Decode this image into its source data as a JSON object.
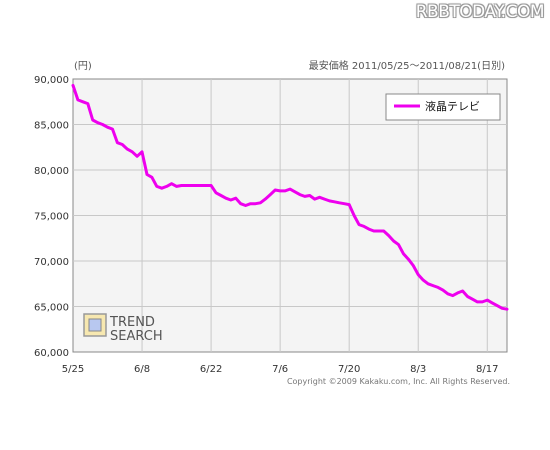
{
  "site": {
    "logo_text": "RBBTODAY.COM"
  },
  "header": {
    "unit": "(円)",
    "range_label": "最安価格  2011/05/25～2011/08/21(日別)"
  },
  "watermark": {
    "line1": "TREND",
    "line2": "SEARCH"
  },
  "footer": {
    "copyright": "Copyright ©2009 Kakaku.com, Inc. All Rights Reserved."
  },
  "colors": {
    "series": "#ee00ee",
    "plot_bg": "#f4f4f4",
    "grid": "#c8c8c8"
  },
  "chart_data": {
    "type": "line",
    "title": "",
    "xlabel": "",
    "ylabel": "(円)",
    "ylim": [
      60000,
      90000
    ],
    "yticks": [
      60000,
      65000,
      70000,
      75000,
      80000,
      85000,
      90000
    ],
    "ytick_labels": [
      "60,000",
      "65,000",
      "70,000",
      "75,000",
      "80,000",
      "85,000",
      "90,000"
    ],
    "xticks": [
      "5/25",
      "6/8",
      "6/22",
      "7/6",
      "7/20",
      "8/3",
      "8/17"
    ],
    "grid": true,
    "legend_position": "top-right",
    "series": [
      {
        "name": "液晶テレビ",
        "color": "#ee00ee",
        "x": [
          "5/25",
          "5/26",
          "5/27",
          "5/28",
          "5/29",
          "5/30",
          "5/31",
          "6/1",
          "6/2",
          "6/3",
          "6/4",
          "6/5",
          "6/6",
          "6/7",
          "6/8",
          "6/9",
          "6/10",
          "6/11",
          "6/12",
          "6/13",
          "6/14",
          "6/15",
          "6/16",
          "6/17",
          "6/18",
          "6/19",
          "6/20",
          "6/21",
          "6/22",
          "6/23",
          "6/24",
          "6/25",
          "6/26",
          "6/27",
          "6/28",
          "6/29",
          "6/30",
          "7/1",
          "7/2",
          "7/3",
          "7/4",
          "7/5",
          "7/6",
          "7/7",
          "7/8",
          "7/9",
          "7/10",
          "7/11",
          "7/12",
          "7/13",
          "7/14",
          "7/15",
          "7/16",
          "7/17",
          "7/18",
          "7/19",
          "7/20",
          "7/21",
          "7/22",
          "7/23",
          "7/24",
          "7/25",
          "7/26",
          "7/27",
          "7/28",
          "7/29",
          "7/30",
          "7/31",
          "8/1",
          "8/2",
          "8/3",
          "8/4",
          "8/5",
          "8/6",
          "8/7",
          "8/8",
          "8/9",
          "8/10",
          "8/11",
          "8/12",
          "8/13",
          "8/14",
          "8/15",
          "8/16",
          "8/17",
          "8/18",
          "8/19",
          "8/20",
          "8/21"
        ],
        "values": [
          89300,
          87700,
          87500,
          87300,
          85500,
          85200,
          85000,
          84700,
          84500,
          83000,
          82800,
          82300,
          82000,
          81500,
          82000,
          79500,
          79200,
          78200,
          78000,
          78200,
          78500,
          78200,
          78300,
          78300,
          78300,
          78300,
          78300,
          78300,
          78300,
          77500,
          77200,
          76900,
          76700,
          76900,
          76300,
          76100,
          76300,
          76300,
          76400,
          76800,
          77300,
          77800,
          77700,
          77700,
          77900,
          77600,
          77300,
          77100,
          77200,
          76800,
          77000,
          76800,
          76600,
          76500,
          76400,
          76300,
          76200,
          75000,
          74000,
          73800,
          73500,
          73300,
          73300,
          73300,
          72800,
          72200,
          71800,
          70800,
          70200,
          69500,
          68500,
          67900,
          67500,
          67300,
          67100,
          66800,
          66400,
          66200,
          66500,
          66700,
          66100,
          65800,
          65500,
          65500,
          65700,
          65400,
          65100,
          64800,
          64700
        ]
      }
    ]
  }
}
